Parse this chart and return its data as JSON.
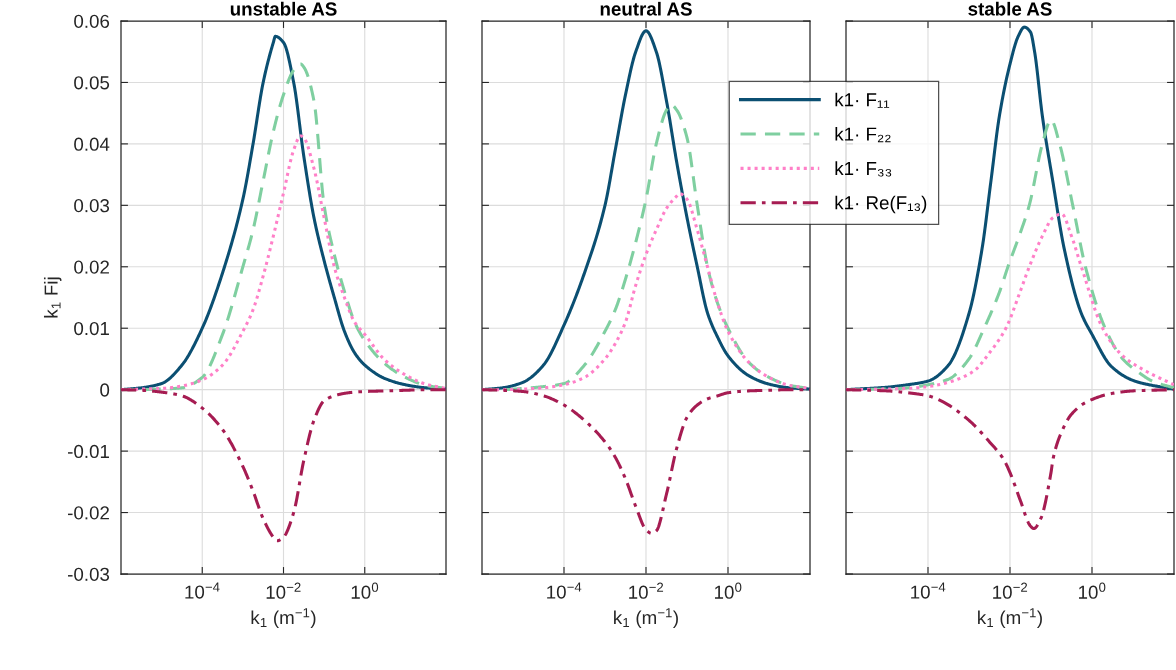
{
  "chart_data": [
    {
      "type": "line",
      "title": "unstable AS",
      "xlabel": "k$_{1}$ (m$^{−1}$)",
      "ylabel": "k$_{1}$ Fij",
      "log": "x",
      "grid": true,
      "xlim": [
        1e-06,
        100
      ],
      "xticks": [
        {
          "value": 0.0001,
          "label": "10$^{−4}$"
        },
        {
          "value": 0.01,
          "label": "10$^{−2}$"
        },
        {
          "value": 1,
          "label": "10$^{0}$"
        }
      ],
      "ylim": [
        -0.03,
        0.06
      ],
      "yticks": [
        -0.03,
        -0.02,
        -0.01,
        0,
        0.01,
        0.02,
        0.03,
        0.04,
        0.05,
        0.06
      ],
      "series": [
        {
          "color": "#0b4f72",
          "line_style": "solid",
          "x": [
            1e-06,
            3.16e-06,
            1e-05,
            3.16e-05,
            0.0001,
            0.000316,
            0.001,
            0.00178,
            0.00316,
            0.00562,
            0.00631,
            0.01,
            0.0178,
            0.0316,
            0.0562,
            0.1,
            0.178,
            0.316,
            0.562,
            1,
            3.16,
            10,
            31.6,
            100
          ],
          "values": [
            0,
            0.0003,
            0.001,
            0.004,
            0.01,
            0.019,
            0.031,
            0.04,
            0.05,
            0.0565,
            0.0575,
            0.0565,
            0.05,
            0.038,
            0.028,
            0.021,
            0.015,
            0.0095,
            0.006,
            0.004,
            0.0018,
            0.0008,
            0.0003,
            0.0001
          ]
        },
        {
          "color": "#7fcfa0",
          "line_style": "dashed",
          "x": [
            1e-06,
            3.16e-06,
            1e-05,
            3.16e-05,
            0.0001,
            0.000316,
            0.001,
            0.00178,
            0.00316,
            0.00562,
            0.01,
            0.0178,
            0.0263,
            0.0316,
            0.0562,
            0.1,
            0.178,
            0.316,
            0.562,
            1,
            3.16,
            10,
            31.6,
            100
          ],
          "values": [
            0,
            0,
            0.0001,
            0.0003,
            0.002,
            0.009,
            0.02,
            0.026,
            0.034,
            0.042,
            0.048,
            0.052,
            0.053,
            0.0525,
            0.047,
            0.03,
            0.022,
            0.016,
            0.011,
            0.008,
            0.0042,
            0.002,
            0.0007,
            0.0002
          ]
        },
        {
          "color": "#ff80c8",
          "line_style": "dotted",
          "x": [
            1e-06,
            3.16e-06,
            1e-05,
            3.16e-05,
            0.0001,
            0.000316,
            0.001,
            0.00178,
            0.00316,
            0.00562,
            0.01,
            0.0178,
            0.0263,
            0.0316,
            0.0562,
            0.1,
            0.178,
            0.316,
            0.562,
            1,
            3.16,
            10,
            31.6,
            100
          ],
          "values": [
            0,
            0.0001,
            0.0002,
            0.0006,
            0.0016,
            0.004,
            0.0095,
            0.013,
            0.0185,
            0.025,
            0.032,
            0.039,
            0.0413,
            0.041,
            0.036,
            0.028,
            0.02,
            0.015,
            0.011,
            0.009,
            0.0048,
            0.0024,
            0.0009,
            0.0002
          ]
        },
        {
          "color": "#a61c52",
          "line_style": "dashdot",
          "x": [
            1e-06,
            3.16e-06,
            1e-05,
            3.16e-05,
            0.0001,
            0.000316,
            0.001,
            0.00178,
            0.00316,
            0.00562,
            0.00692,
            0.01,
            0.0178,
            0.0316,
            0.0562,
            0.1,
            0.178,
            0.316,
            0.562,
            1,
            3.16,
            10,
            31.6,
            100
          ],
          "values": [
            0,
            -0.0001,
            -0.0004,
            -0.001,
            -0.003,
            -0.0065,
            -0.0125,
            -0.0165,
            -0.021,
            -0.024,
            -0.0246,
            -0.024,
            -0.02,
            -0.0115,
            -0.005,
            -0.0018,
            -0.001,
            -0.0006,
            -0.0004,
            -0.0003,
            -0.0002,
            -0.0001,
            0,
            0
          ]
        }
      ]
    },
    {
      "type": "line",
      "title": "neutral AS",
      "xlabel": "k$_{1}$ (m$^{−1}$)",
      "log": "x",
      "grid": true,
      "tick_labels": "x",
      "legend": "top right",
      "xlim": [
        1e-06,
        100
      ],
      "xticks": [
        {
          "value": 0.0001,
          "label": "10$^{−4}$"
        },
        {
          "value": 0.01,
          "label": "10$^{−2}$"
        },
        {
          "value": 1,
          "label": "10$^{0}$"
        }
      ],
      "ylim": [
        -0.03,
        0.06
      ],
      "yticks": [
        -0.03,
        -0.02,
        -0.01,
        0,
        0.01,
        0.02,
        0.03,
        0.04,
        0.05,
        0.06
      ],
      "series": [
        {
          "name": "k1· F₁₁",
          "color": "#0b4f72",
          "line_style": "solid",
          "x": [
            1e-06,
            3.16e-06,
            1e-05,
            3.16e-05,
            0.0001,
            0.000316,
            0.001,
            0.00178,
            0.00316,
            0.00562,
            0.01,
            0.0178,
            0.0316,
            0.0562,
            0.1,
            0.178,
            0.316,
            0.562,
            1,
            3.16,
            10,
            31.6,
            100
          ],
          "values": [
            0,
            0.0003,
            0.0012,
            0.004,
            0.0105,
            0.019,
            0.03,
            0.039,
            0.048,
            0.055,
            0.0584,
            0.055,
            0.047,
            0.037,
            0.028,
            0.02,
            0.0125,
            0.0085,
            0.0055,
            0.0023,
            0.0009,
            0.0003,
            0.0001
          ]
        },
        {
          "name": "k1· F₂₂",
          "color": "#7fcfa0",
          "line_style": "dashed",
          "x": [
            1e-06,
            3.16e-06,
            1e-05,
            3.16e-05,
            0.0001,
            0.000316,
            0.001,
            0.00178,
            0.00316,
            0.00562,
            0.01,
            0.0178,
            0.0316,
            0.0407,
            0.0562,
            0.1,
            0.178,
            0.316,
            0.562,
            1,
            3.16,
            10,
            31.6,
            100
          ],
          "values": [
            0,
            0,
            0.0002,
            0.0005,
            0.001,
            0.004,
            0.0095,
            0.013,
            0.018,
            0.024,
            0.031,
            0.04,
            0.0455,
            0.0464,
            0.0455,
            0.041,
            0.03,
            0.02,
            0.014,
            0.01,
            0.0045,
            0.002,
            0.0007,
            0.0002
          ]
        },
        {
          "name": "k1· F₃₃",
          "color": "#ff80c8",
          "line_style": "dotted",
          "x": [
            1e-06,
            3.16e-06,
            1e-05,
            3.16e-05,
            0.0001,
            0.000316,
            0.001,
            0.00178,
            0.00316,
            0.00562,
            0.01,
            0.0178,
            0.0316,
            0.0562,
            0.0661,
            0.1,
            0.178,
            0.316,
            0.562,
            1,
            3.16,
            10,
            31.6,
            100
          ],
          "values": [
            0,
            0,
            0.0001,
            0.0003,
            0.0008,
            0.002,
            0.005,
            0.0075,
            0.011,
            0.017,
            0.022,
            0.026,
            0.0295,
            0.0315,
            0.0319,
            0.031,
            0.026,
            0.02,
            0.014,
            0.0095,
            0.0045,
            0.002,
            0.0007,
            0.0002
          ]
        },
        {
          "name": "k1· Re(F₁₃)",
          "color": "#a61c52",
          "line_style": "dashdot",
          "x": [
            1e-06,
            3.16e-06,
            1e-05,
            3.16e-05,
            0.0001,
            0.000316,
            0.001,
            0.00178,
            0.00316,
            0.00562,
            0.01,
            0.0138,
            0.0178,
            0.0316,
            0.0562,
            0.1,
            0.178,
            0.316,
            0.562,
            1,
            3.16,
            10,
            31.6,
            100
          ],
          "values": [
            0,
            -0.0001,
            -0.0003,
            -0.001,
            -0.0025,
            -0.005,
            -0.0085,
            -0.011,
            -0.0145,
            -0.019,
            -0.0228,
            -0.0234,
            -0.023,
            -0.017,
            -0.0095,
            -0.0045,
            -0.0025,
            -0.0015,
            -0.001,
            -0.0005,
            -0.0002,
            -0.0001,
            0,
            0
          ]
        }
      ]
    },
    {
      "type": "line",
      "title": "stable AS",
      "xlabel": "k$_{1}$ (m$^{−1}$)",
      "log": "x",
      "grid": true,
      "tick_labels": "x",
      "xlim": [
        1e-06,
        100
      ],
      "xticks": [
        {
          "value": 0.0001,
          "label": "10$^{−4}$"
        },
        {
          "value": 0.01,
          "label": "10$^{−2}$"
        },
        {
          "value": 1,
          "label": "10$^{0}$"
        }
      ],
      "ylim": [
        -0.03,
        0.06
      ],
      "yticks": [
        -0.03,
        -0.02,
        -0.01,
        0,
        0.01,
        0.02,
        0.03,
        0.04,
        0.05,
        0.06
      ],
      "series": [
        {
          "color": "#0b4f72",
          "line_style": "solid",
          "x": [
            1e-06,
            1e-05,
            3.16e-05,
            0.0001,
            0.000316,
            0.001,
            0.00209,
            0.00339,
            0.0055,
            0.01,
            0.01585,
            0.0224,
            0.0316,
            0.0398,
            0.0617,
            0.112,
            0.209,
            0.55,
            1,
            2.95,
            10,
            20.9,
            100
          ],
          "values": [
            0,
            0.0004,
            0.0008,
            0.0014,
            0.004,
            0.0124,
            0.023,
            0.0337,
            0.0445,
            0.053,
            0.0575,
            0.059,
            0.0582,
            0.055,
            0.0445,
            0.0337,
            0.023,
            0.0124,
            0.009,
            0.0038,
            0.0015,
            0.0009,
            0.0001
          ]
        },
        {
          "color": "#7fcfa0",
          "line_style": "dashed",
          "x": [
            1e-06,
            1e-05,
            3.16e-05,
            0.0001,
            0.000316,
            0.001,
            0.00234,
            0.00562,
            0.00891,
            0.0178,
            0.0295,
            0.0617,
            0.1,
            0.162,
            0.339,
            0.692,
            2.09,
            5.62,
            12.6,
            31.6,
            100
          ],
          "values": [
            0,
            0.0001,
            0.0003,
            0.0008,
            0.0017,
            0.005,
            0.01,
            0.016,
            0.02,
            0.0255,
            0.03,
            0.04,
            0.0439,
            0.04,
            0.03,
            0.02,
            0.01,
            0.005,
            0.003,
            0.0013,
            0.0003
          ]
        },
        {
          "color": "#ff80c8",
          "line_style": "dotted",
          "x": [
            1e-06,
            1e-05,
            3.16e-05,
            0.0001,
            0.000316,
            0.00129,
            0.00316,
            0.00794,
            0.0178,
            0.0295,
            0.0617,
            0.112,
            0.182,
            0.316,
            0.55,
            1.82,
            5.62,
            20.9,
            100
          ],
          "values": [
            0,
            0.0001,
            0.0002,
            0.0005,
            0.0012,
            0.003,
            0.006,
            0.01,
            0.016,
            0.02,
            0.025,
            0.028,
            0.0286,
            0.025,
            0.02,
            0.01,
            0.0055,
            0.003,
            0.0008
          ]
        },
        {
          "color": "#a61c52",
          "line_style": "dashdot",
          "x": [
            1e-06,
            1e-05,
            3.16e-05,
            0.0001,
            0.000234,
            0.001,
            0.00316,
            0.00692,
            0.01,
            0.0178,
            0.0316,
            0.038,
            0.0562,
            0.1,
            0.112,
            0.178,
            0.316,
            0.741,
            3.16,
            10,
            100
          ],
          "values": [
            0,
            -0.0002,
            -0.0005,
            -0.001,
            -0.002,
            -0.005,
            -0.0085,
            -0.0113,
            -0.0135,
            -0.018,
            -0.0222,
            -0.0226,
            -0.021,
            -0.0135,
            -0.0113,
            -0.007,
            -0.004,
            -0.002,
            -0.0006,
            -0.0002,
            0
          ]
        }
      ]
    }
  ]
}
